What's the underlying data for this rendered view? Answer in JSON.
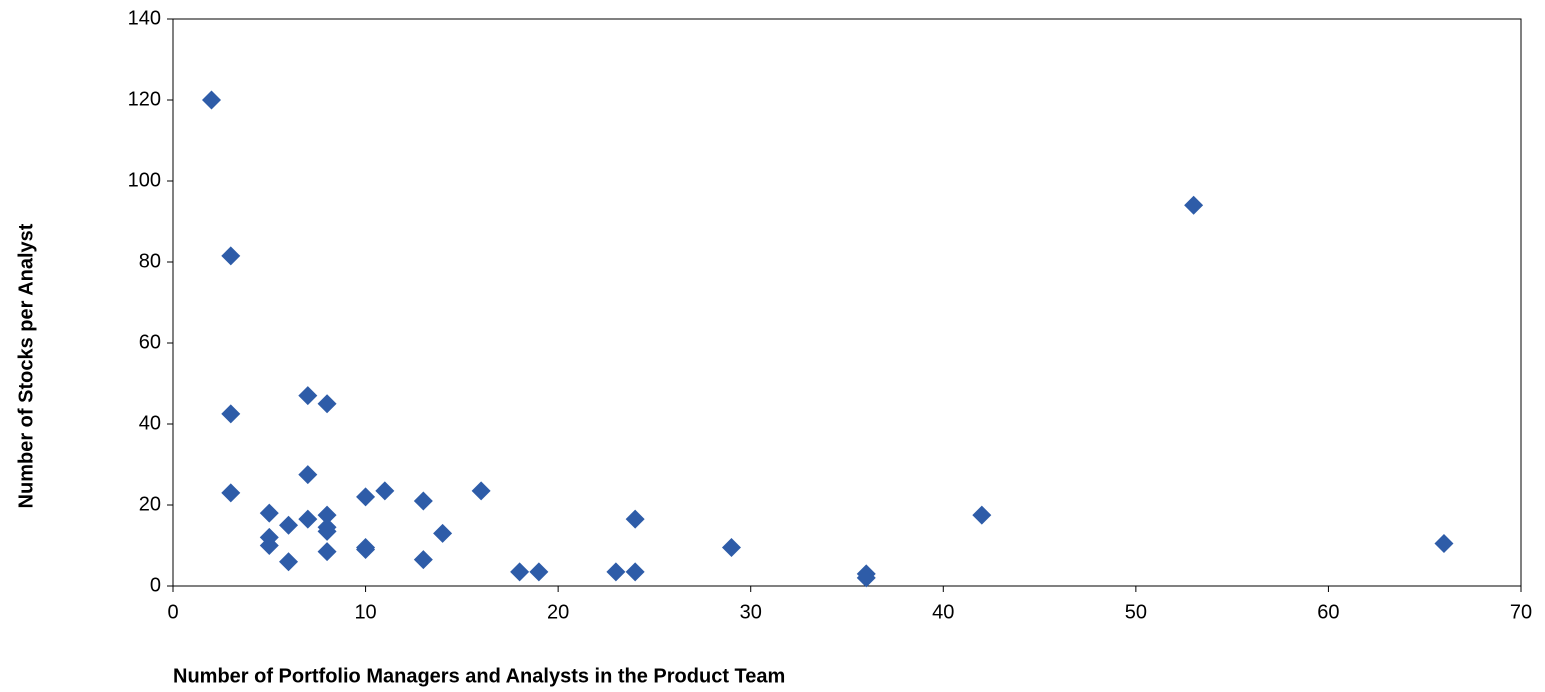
{
  "chart_data": {
    "type": "scatter",
    "x_label": "Number of Portfolio Managers and Analysts in the Product Team",
    "y_label": "Number of Stocks per Analyst",
    "x": [
      2,
      3,
      3,
      3,
      5,
      5,
      5,
      6,
      6,
      7,
      7,
      7,
      8,
      8,
      8,
      8,
      8,
      10,
      10,
      10,
      11,
      13,
      13,
      14,
      16,
      18,
      19,
      23,
      24,
      24,
      29,
      36,
      36,
      42,
      53,
      66
    ],
    "values": [
      120,
      81.5,
      42.5,
      23,
      18,
      12,
      10,
      15,
      6,
      47,
      27.5,
      16.5,
      45,
      17.5,
      14.5,
      13.5,
      8.5,
      22,
      9.5,
      9,
      23.5,
      21,
      6.5,
      13,
      23.5,
      3.5,
      3.5,
      3.5,
      16.5,
      3.5,
      9.5,
      3,
      2,
      17.5,
      94,
      10.5
    ],
    "color": "#2e5ca8",
    "xlim": [
      0,
      70
    ],
    "xticks": [
      0,
      10,
      20,
      30,
      40,
      50,
      60,
      70
    ],
    "ylim": [
      0,
      140
    ],
    "yticks": [
      0,
      20,
      40,
      60,
      80,
      100,
      120,
      140
    ],
    "grid": false
  }
}
